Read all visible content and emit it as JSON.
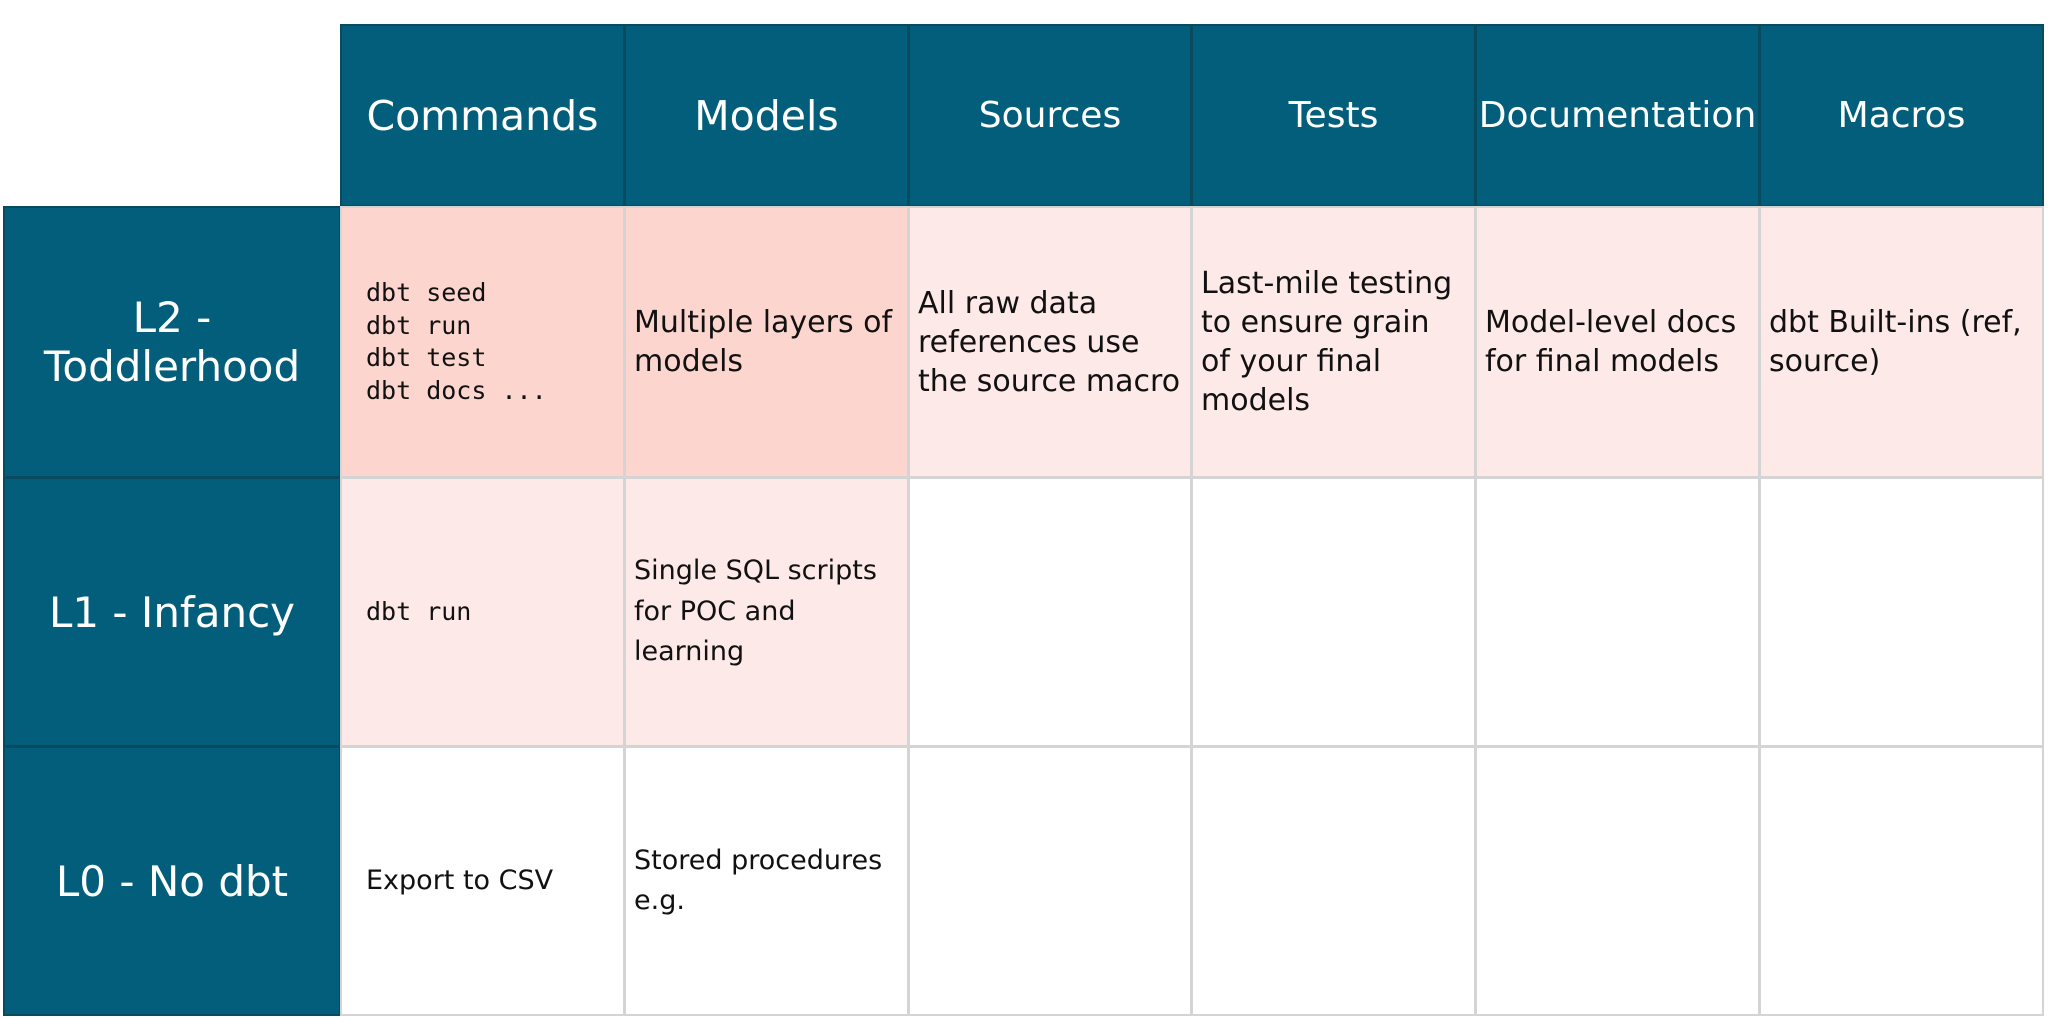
{
  "table": {
    "columns": [
      "Commands",
      "Models",
      "Sources",
      "Tests",
      "Documentation",
      "Macros"
    ],
    "rows": [
      {
        "label": "L2 - Toddlerhood",
        "cells": [
          "dbt seed\ndbt run\ndbt test\ndbt docs ...",
          "Multiple layers of models",
          "All raw data references use the source macro",
          "Last-mile testing to ensure grain of your final models",
          "Model-level docs for final models",
          "dbt Built-ins (ref, source)"
        ]
      },
      {
        "label": "L1 - Infancy",
        "cells": [
          "dbt run",
          "Single SQL scripts for POC and learning"
        ]
      },
      {
        "label": "L0 - No dbt",
        "cells": [
          "Export to CSV",
          "Stored procedures e.g."
        ]
      }
    ]
  }
}
